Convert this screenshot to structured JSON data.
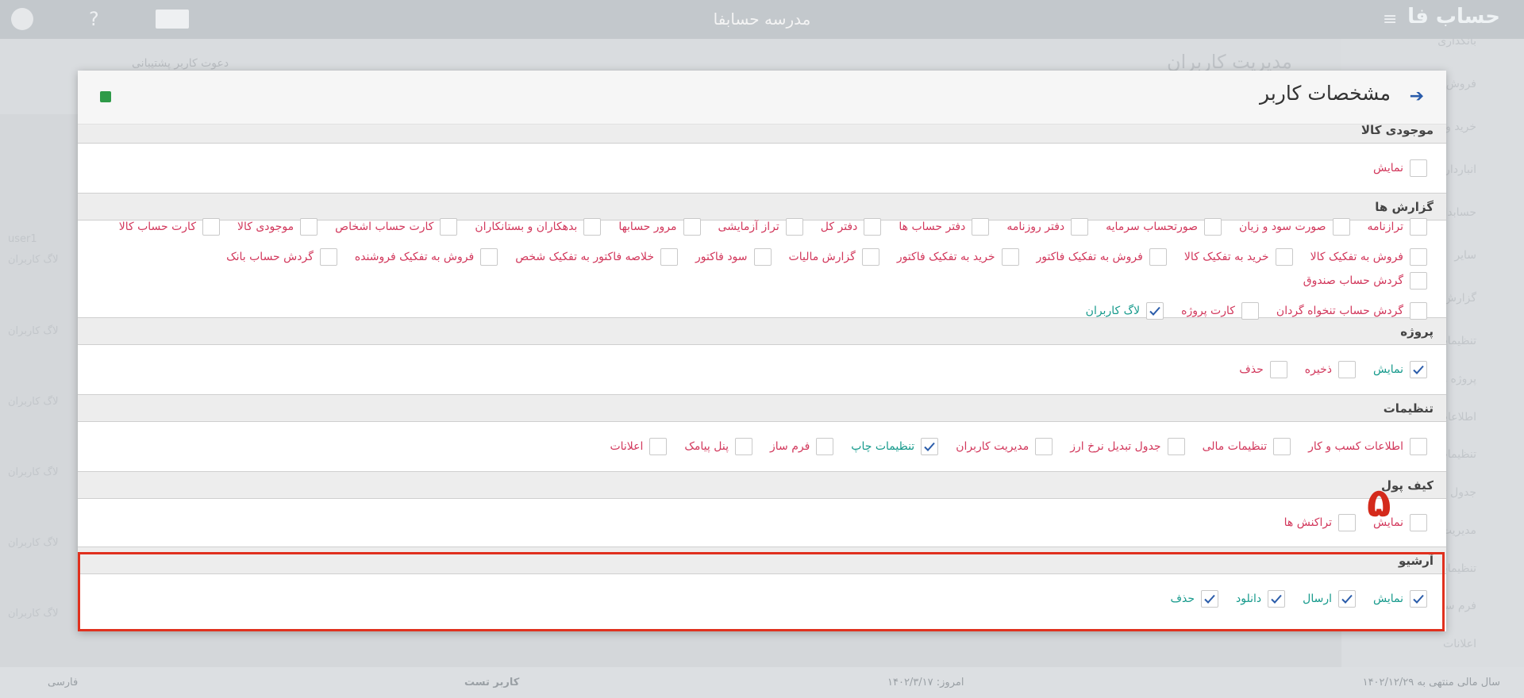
{
  "topbar": {
    "title": "مدرسه حسابفا",
    "logo": "حساب فا"
  },
  "background": {
    "page_title": "مدیریت کاربران",
    "invite": "دعوت کاربر پشتیبانی",
    "sidebar": [
      "بانکداری",
      "فروش و درآمد",
      "خرید و هزینه",
      "انبارداری",
      "حسابداری",
      "سایر",
      "گزارش ها",
      "تنظیمات",
      "پروژه ها",
      "اطلاعات کسب و کار",
      "تنظیمات مالی",
      "جدول تبدیل نرخ ارز",
      "مدیریت کاربران",
      "تنظیمات چاپ",
      "فرم ساز",
      "اعلانات"
    ],
    "list": [
      "user1",
      "لاگ کاربران",
      "لاگ کاربران",
      "لاگ کاربران",
      "لاگ کاربران",
      "لاگ کاربران",
      "لاگ کاربران"
    ]
  },
  "modal": {
    "title": "مشخصات کاربر",
    "sections": [
      {
        "title": "موجودی کالا",
        "items": [
          {
            "label": "نمایش",
            "checked": false
          }
        ]
      },
      {
        "title": "گزارش ها",
        "items": [
          {
            "label": "ترازنامه",
            "checked": false
          },
          {
            "label": "صورت سود و زیان",
            "checked": false
          },
          {
            "label": "صورتحساب سرمایه",
            "checked": false
          },
          {
            "label": "دفتر روزنامه",
            "checked": false
          },
          {
            "label": "دفتر حساب ها",
            "checked": false
          },
          {
            "label": "دفتر کل",
            "checked": false
          },
          {
            "label": "تراز آزمایشی",
            "checked": false
          },
          {
            "label": "مرور حسابها",
            "checked": false
          },
          {
            "label": "بدهکاران و بستانکاران",
            "checked": false
          },
          {
            "label": "کارت حساب اشخاص",
            "checked": false
          },
          {
            "label": "موجودی کالا",
            "checked": false
          },
          {
            "label": "کارت حساب کالا",
            "checked": false
          },
          {
            "label": "فروش به تفکیک کالا",
            "checked": false
          },
          {
            "label": "خرید به تفکیک کالا",
            "checked": false
          },
          {
            "label": "فروش به تفکیک فاکتور",
            "checked": false
          },
          {
            "label": "خرید به تفکیک فاکتور",
            "checked": false
          },
          {
            "label": "گزارش مالیات",
            "checked": false
          },
          {
            "label": "سود فاکتور",
            "checked": false
          },
          {
            "label": "خلاصه فاکتور به تفکیک شخص",
            "checked": false
          },
          {
            "label": "فروش به تفکیک فروشنده",
            "checked": false
          },
          {
            "label": "گردش حساب بانک",
            "checked": false
          },
          {
            "label": "گردش حساب صندوق",
            "checked": false
          },
          {
            "label": "گردش حساب تنخواه گردان",
            "checked": false
          },
          {
            "label": "کارت پروژه",
            "checked": false
          },
          {
            "label": "لاگ کاربران",
            "checked": true
          }
        ]
      },
      {
        "title": "پروژه",
        "items": [
          {
            "label": "نمایش",
            "checked": true
          },
          {
            "label": "ذخیره",
            "checked": false
          },
          {
            "label": "حذف",
            "checked": false
          }
        ]
      },
      {
        "title": "تنظیمات",
        "items": [
          {
            "label": "اطلاعات کسب و کار",
            "checked": false
          },
          {
            "label": "تنظیمات مالی",
            "checked": false
          },
          {
            "label": "جدول تبدیل نرخ ارز",
            "checked": false
          },
          {
            "label": "مدیریت کاربران",
            "checked": false
          },
          {
            "label": "تنظیمات چاپ",
            "checked": true
          },
          {
            "label": "فرم ساز",
            "checked": false
          },
          {
            "label": "پنل پیامک",
            "checked": false
          },
          {
            "label": "اعلانات",
            "checked": false
          }
        ]
      },
      {
        "title": "کیف پول",
        "items": [
          {
            "label": "نمایش",
            "checked": false
          },
          {
            "label": "تراکنش ها",
            "checked": false
          }
        ]
      },
      {
        "title": "آرشیو",
        "items": [
          {
            "label": "نمایش",
            "checked": true
          },
          {
            "label": "ارسال",
            "checked": true
          },
          {
            "label": "دانلود",
            "checked": true
          },
          {
            "label": "حذف",
            "checked": true
          }
        ]
      }
    ]
  },
  "annotation": "۵",
  "footer": {
    "fiscal_year": "سال مالی منتهی به ۱۴۰۲/۱۲/۲۹",
    "today": "امروز: ۱۴۰۲/۳/۱۷",
    "user": "کاربر تست",
    "language": "فارسی"
  }
}
